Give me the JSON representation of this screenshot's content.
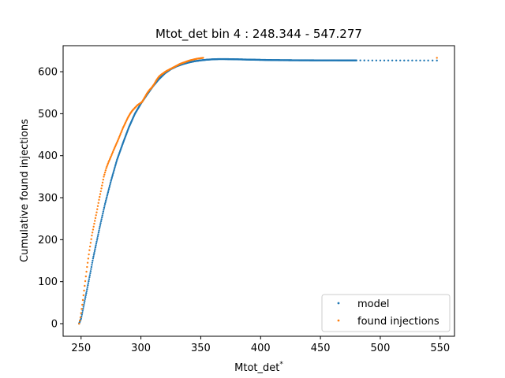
{
  "chart_data": {
    "type": "scatter",
    "title": "Mtot_det bin 4 : 248.344 - 547.277",
    "xlabel": "Mtot_det",
    "xlabel_sup": "*",
    "ylabel": "Cumulative found injections",
    "xlim": [
      235,
      562
    ],
    "ylim": [
      -30,
      662
    ],
    "xticks": [
      250,
      300,
      350,
      400,
      450,
      500,
      550
    ],
    "yticks": [
      0,
      100,
      200,
      300,
      400,
      500,
      600
    ],
    "legend_position": "bottom-right",
    "series": [
      {
        "name": "model",
        "color": "#1f77b4",
        "x": [
          248.3,
          250,
          252,
          255,
          258,
          260,
          263,
          266,
          270,
          275,
          280,
          285,
          290,
          295,
          300,
          305,
          310,
          315,
          320,
          325,
          330,
          335,
          340,
          345,
          350,
          355,
          360,
          365,
          370,
          375,
          380,
          390,
          400,
          410,
          420,
          430,
          440,
          450,
          460,
          470,
          480,
          490,
          500,
          510,
          520,
          530,
          540,
          547.3
        ],
        "y": [
          0,
          12,
          40,
          82,
          125,
          155,
          195,
          235,
          285,
          340,
          390,
          430,
          468,
          500,
          524,
          545,
          565,
          582,
          596,
          606,
          613,
          618,
          622,
          625,
          627,
          628.5,
          629.5,
          630,
          630,
          629.8,
          629.5,
          628.8,
          628.2,
          627.7,
          627.4,
          627.2,
          627.1,
          627,
          627,
          626.9,
          626.9,
          626.8,
          626.8,
          626.8,
          626.7,
          626.7,
          626.7,
          626.7
        ]
      },
      {
        "name": "found injections",
        "color": "#ff7f0e",
        "x": [
          248.4,
          249.5,
          251,
          253,
          255,
          257,
          259,
          261,
          263,
          265,
          267,
          269,
          271,
          273,
          275,
          277,
          279,
          281,
          283,
          285,
          287,
          289,
          291,
          293,
          295,
          297,
          299,
          301,
          303,
          305,
          307,
          309,
          311,
          313,
          315,
          317,
          319,
          321,
          323,
          325,
          327,
          329,
          331,
          333,
          335,
          337,
          339,
          341,
          344,
          347,
          352,
          547.3
        ],
        "y": [
          0,
          15,
          45,
          90,
          135,
          175,
          210,
          238,
          265,
          295,
          322,
          350,
          370,
          385,
          398,
          412,
          425,
          438,
          452,
          466,
          478,
          490,
          500,
          508,
          514,
          520,
          524,
          528,
          538,
          548,
          556,
          562,
          570,
          580,
          588,
          593,
          597,
          601,
          604,
          607,
          610,
          613,
          616,
          619,
          621,
          623,
          625,
          627,
          629,
          631,
          633,
          633
        ]
      }
    ]
  }
}
